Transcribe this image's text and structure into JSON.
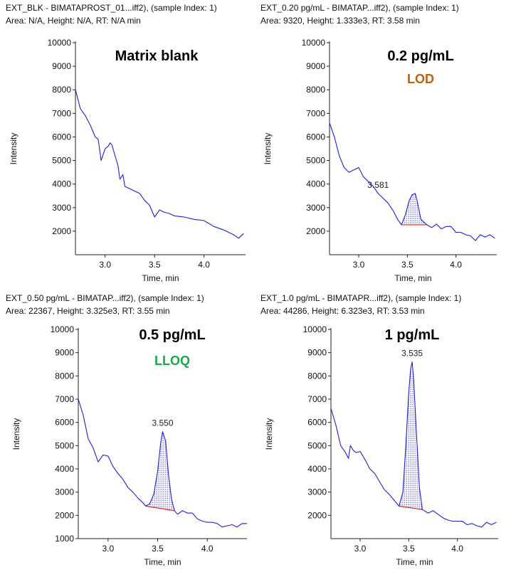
{
  "colors": {
    "trace": "#1f1fd6",
    "baseline": "#e02020",
    "axis": "#222222",
    "hatch": "#1f1fd6",
    "LOD": "#c0600f",
    "LLOQ": "#1aa64a"
  },
  "chart_data": [
    {
      "type": "line",
      "header_line1": "EXT_BLK - BIMATAPROST_01...iff2), (sample Index: 1)",
      "header_line2": "Area: N/A, Height: N/A, RT: N/A min",
      "label": "Matrix blank",
      "condition": "",
      "ylabel": "Intensity",
      "xlabel": "Time, min",
      "xlim": [
        2.7,
        4.42
      ],
      "ylim": [
        1000,
        10000
      ],
      "xticks": [
        "3.0",
        "3.5",
        "4.0"
      ],
      "yticks": [
        "2000",
        "3000",
        "4000",
        "5000",
        "6000",
        "7000",
        "8000",
        "9000",
        "10000"
      ],
      "peak": null,
      "series": [
        {
          "x": [
            2.7,
            2.75,
            2.8,
            2.85,
            2.9,
            2.93,
            2.96,
            3.0,
            3.03,
            3.05,
            3.07,
            3.1,
            3.13,
            3.15,
            3.18,
            3.2,
            3.25,
            3.3,
            3.35,
            3.4,
            3.45,
            3.5,
            3.55,
            3.6,
            3.65,
            3.7,
            3.8,
            3.9,
            4.0,
            4.1,
            4.2,
            4.3,
            4.35,
            4.4
          ],
          "y": [
            8000,
            7200,
            6900,
            6500,
            6000,
            5900,
            5000,
            5500,
            5600,
            5750,
            5650,
            5200,
            4800,
            4200,
            4400,
            3900,
            3800,
            3700,
            3600,
            3300,
            3100,
            2600,
            2900,
            2800,
            2750,
            2650,
            2600,
            2500,
            2450,
            2200,
            2050,
            1850,
            1700,
            1900
          ]
        }
      ]
    },
    {
      "type": "line",
      "header_line1": "EXT_0.20 pg/mL - BIMATAP...iff2), (sample Index: 1)",
      "header_line2": "Area: 9320, Height: 1.333e3, RT: 3.58 min",
      "label": "0.2 pg/mL",
      "condition": "LOD",
      "ylabel": "Intensity",
      "xlabel": "Time, min",
      "xlim": [
        2.7,
        4.42
      ],
      "ylim": [
        1000,
        10000
      ],
      "xticks": [
        "3.0",
        "3.5",
        "4.0"
      ],
      "yticks": [
        "2000",
        "3000",
        "4000",
        "5000",
        "6000",
        "7000",
        "8000",
        "9000",
        "10000"
      ],
      "peak": {
        "rt_label": "3.581",
        "start": 3.44,
        "end": 3.7,
        "base_start": 2270,
        "base_end": 2270
      },
      "series": [
        {
          "x": [
            2.7,
            2.75,
            2.8,
            2.85,
            2.9,
            2.95,
            3.0,
            3.05,
            3.1,
            3.15,
            3.2,
            3.25,
            3.3,
            3.35,
            3.4,
            3.44,
            3.48,
            3.52,
            3.55,
            3.581,
            3.6,
            3.64,
            3.7,
            3.75,
            3.8,
            3.85,
            3.9,
            3.95,
            4.0,
            4.05,
            4.1,
            4.15,
            4.2,
            4.25,
            4.3,
            4.35,
            4.4
          ],
          "y": [
            6600,
            6000,
            5200,
            4700,
            4500,
            4600,
            4700,
            4300,
            4100,
            3900,
            3600,
            3400,
            3200,
            2900,
            2500,
            2270,
            2700,
            3300,
            3550,
            3600,
            3300,
            2500,
            2270,
            2150,
            2300,
            2100,
            2200,
            2200,
            1950,
            1950,
            1850,
            1800,
            1600,
            1850,
            1750,
            1850,
            1700
          ]
        }
      ]
    },
    {
      "type": "line",
      "header_line1": "EXT_0.50 pg/mL - BIMATAP...iff2), (sample Index: 1)",
      "header_line2": "Area: 22367, Height: 3.325e3, RT: 3.55 min",
      "label": "0.5 pg/mL",
      "condition": "LLOQ",
      "ylabel": "Intensity",
      "xlabel": "Time, min",
      "xlim": [
        2.7,
        4.4
      ],
      "ylim": [
        1000,
        10000
      ],
      "xticks": [
        "3.0",
        "3.5",
        "4.0"
      ],
      "yticks": [
        "1000",
        "2000",
        "3000",
        "4000",
        "5000",
        "6000",
        "7000",
        "8000",
        "9000",
        "10000"
      ],
      "peak": {
        "rt_label": "3.550",
        "start": 3.38,
        "end": 3.67,
        "base_start": 2400,
        "base_end": 2200
      },
      "series": [
        {
          "x": [
            2.7,
            2.75,
            2.8,
            2.85,
            2.9,
            2.95,
            3.0,
            3.05,
            3.1,
            3.15,
            3.2,
            3.25,
            3.3,
            3.35,
            3.38,
            3.42,
            3.46,
            3.5,
            3.53,
            3.55,
            3.58,
            3.61,
            3.64,
            3.67,
            3.7,
            3.75,
            3.8,
            3.85,
            3.9,
            3.95,
            4.0,
            4.05,
            4.1,
            4.15,
            4.2,
            4.25,
            4.3,
            4.35,
            4.4
          ],
          "y": [
            7000,
            6300,
            5300,
            4900,
            4300,
            4600,
            4550,
            4100,
            3800,
            3550,
            3200,
            3000,
            2750,
            2550,
            2400,
            2500,
            2900,
            3900,
            5100,
            5600,
            5200,
            3700,
            2700,
            2200,
            2050,
            2200,
            2100,
            2100,
            1850,
            1750,
            1700,
            1700,
            1650,
            1500,
            1550,
            1600,
            1500,
            1650,
            1650
          ]
        }
      ]
    },
    {
      "type": "line",
      "header_line1": "EXT_1.0 pg/mL - BIMATAPR...iff2), (sample Index: 1)",
      "header_line2": "Area: 44286, Height: 6.323e3, RT: 3.53 min",
      "label": "1 pg/mL",
      "condition": "",
      "ylabel": "Intensity",
      "xlabel": "Time, min",
      "xlim": [
        2.7,
        4.42
      ],
      "ylim": [
        1000,
        10000
      ],
      "xticks": [
        "3.0",
        "3.5",
        "4.0"
      ],
      "yticks": [
        "2000",
        "3000",
        "4000",
        "5000",
        "6000",
        "7000",
        "8000",
        "9000",
        "10000"
      ],
      "peak": {
        "rt_label": "3.535",
        "start": 3.4,
        "end": 3.64,
        "base_start": 2400,
        "base_end": 2250
      },
      "series": [
        {
          "x": [
            2.7,
            2.75,
            2.8,
            2.85,
            2.88,
            2.9,
            2.93,
            2.96,
            3.0,
            3.05,
            3.1,
            3.15,
            3.2,
            3.25,
            3.3,
            3.35,
            3.4,
            3.44,
            3.47,
            3.5,
            3.52,
            3.535,
            3.55,
            3.58,
            3.61,
            3.64,
            3.7,
            3.75,
            3.8,
            3.85,
            3.9,
            3.95,
            4.0,
            4.05,
            4.1,
            4.15,
            4.2,
            4.25,
            4.3,
            4.35,
            4.4
          ],
          "y": [
            6600,
            5900,
            5000,
            4700,
            4450,
            5000,
            4800,
            4700,
            4750,
            4400,
            4000,
            3800,
            3450,
            3100,
            2900,
            2650,
            2400,
            3000,
            5000,
            7300,
            8300,
            8600,
            7900,
            5500,
            3200,
            2250,
            2100,
            2200,
            2050,
            1900,
            1800,
            1750,
            1750,
            1750,
            1600,
            1650,
            1550,
            1500,
            1700,
            1600,
            1700
          ]
        }
      ]
    }
  ]
}
